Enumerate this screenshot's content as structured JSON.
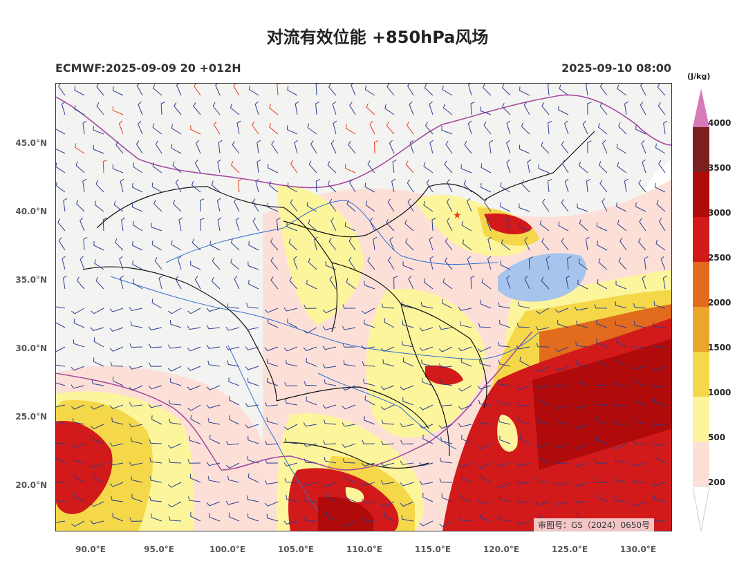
{
  "title": "对流有效位能 +850hPa风场",
  "subtitle_left": "ECMWF:2025-09-09 20 +012H",
  "subtitle_right": "2025-09-10 08:00",
  "approval_number": "审图号：GS（2024）0650号",
  "lat_labels": [
    "45.0°N",
    "40.0°N",
    "35.0°N",
    "30.0°N",
    "25.0°N",
    "20.0°N"
  ],
  "lon_labels": [
    "90.0°E",
    "95.0°E",
    "100.0°E",
    "105.0°E",
    "110.0°E",
    "115.0°E",
    "120.0°E",
    "125.0°E",
    "130.0°E"
  ],
  "colorbar": {
    "unit": "(J/kg)",
    "levels": [
      "200",
      "500",
      "1000",
      "1500",
      "2000",
      "2500",
      "3000",
      "3500",
      "4000"
    ],
    "colors": [
      "#fce0d8",
      "#fdf59c",
      "#f5d84a",
      "#e9a52c",
      "#e26b1d",
      "#d21a1a",
      "#b00a0a",
      "#7a2020",
      "#d77ab8"
    ],
    "extend": "both"
  },
  "colors": {
    "land": "#f3f3f1",
    "sea": "#ffffff",
    "wind_barb": "#2a3f8f",
    "strong_wind_barb": "#e23b1a",
    "province_border": "#111111",
    "national_border": "#a44ba0",
    "river": "#2f6fd0",
    "lake": "#a7c4ec"
  },
  "map": {
    "lon_range": [
      87.5,
      132.5
    ],
    "lat_range": [
      16.5,
      49.5
    ],
    "marker": "star-icon"
  }
}
